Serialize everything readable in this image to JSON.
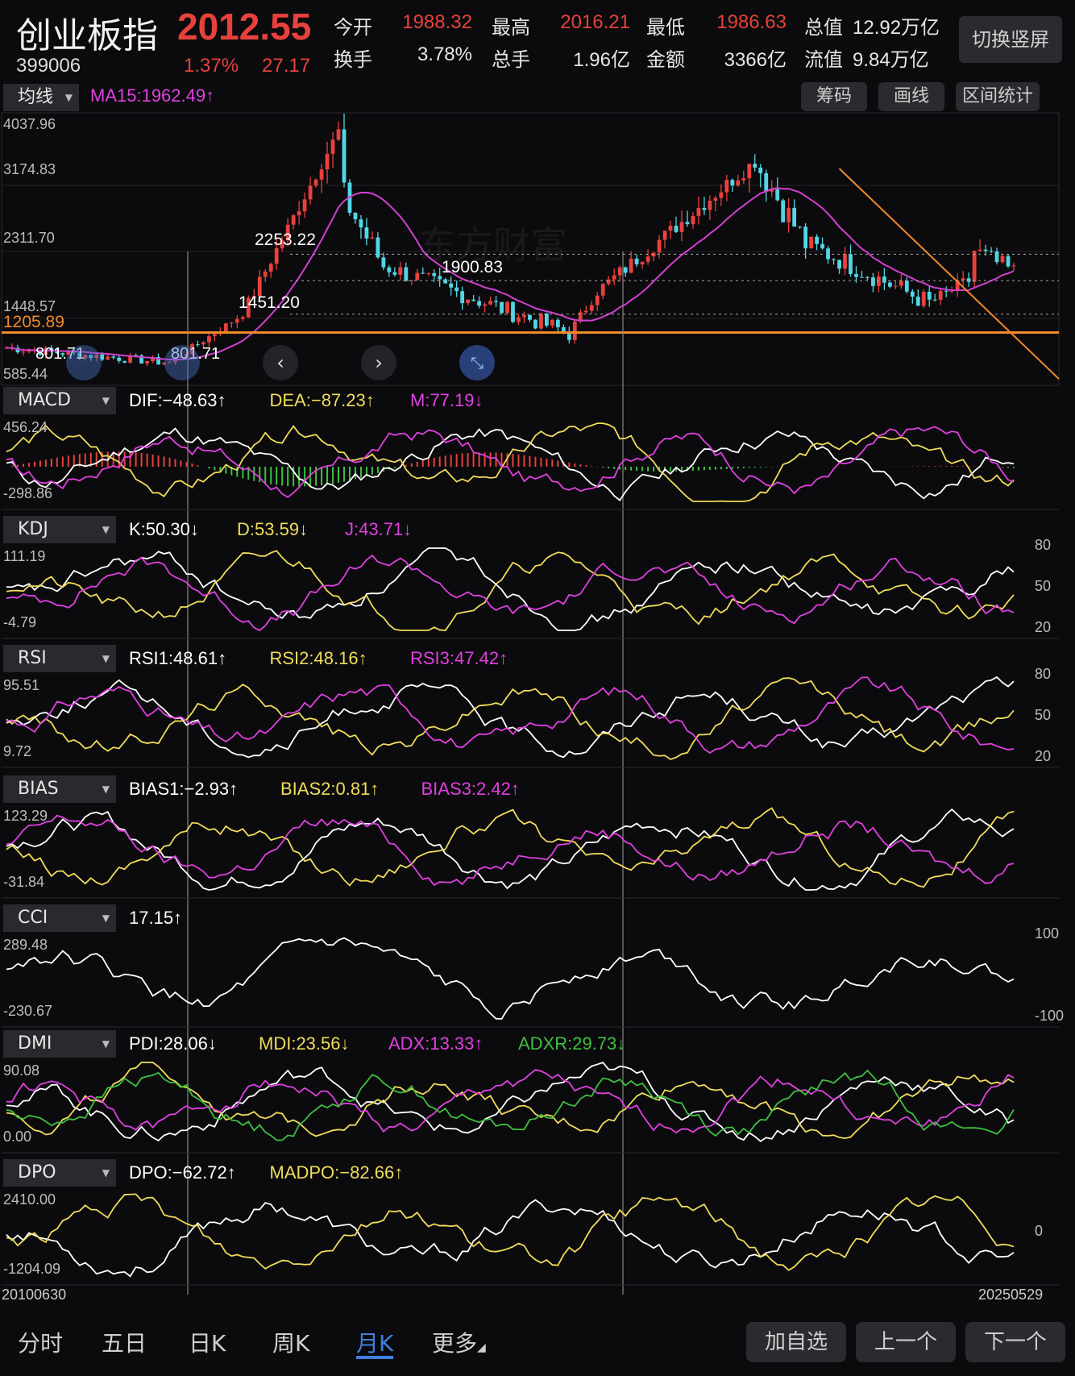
{
  "header": {
    "name": "创业板指",
    "price": "2012.55",
    "code": "399006",
    "change_pct": "1.37%",
    "change": "27.17",
    "stats": [
      {
        "label": "今开",
        "value": "1988.32",
        "color": "#e8413c"
      },
      {
        "label": "最高",
        "value": "2016.21",
        "color": "#e8413c"
      },
      {
        "label": "最低",
        "value": "1986.63",
        "color": "#e8413c"
      },
      {
        "label": "总值",
        "value": "12.92万亿",
        "color": "#e6e6e6"
      },
      {
        "label": "换手",
        "value": "3.78%",
        "color": "#e6e6e6"
      },
      {
        "label": "总手",
        "value": "1.96亿",
        "color": "#e6e6e6"
      },
      {
        "label": "金额",
        "value": "3366亿",
        "color": "#e6e6e6"
      },
      {
        "label": "流值",
        "value": "9.84万亿",
        "color": "#e6e6e6"
      }
    ],
    "switch_btn": "切换竖屏"
  },
  "toolbar": {
    "ma_select": "均线",
    "ma_legend": "MA15:1962.49↑",
    "buttons": [
      "筹码",
      "画线",
      "区间统计"
    ]
  },
  "main_chart": {
    "ylabels": [
      "4037.96",
      "3174.83",
      "2311.70",
      "1448.57",
      "585.44"
    ],
    "annotations": [
      "2253.22",
      "1900.83",
      "1451.20",
      "801.71",
      "801.71"
    ],
    "hline_label": "1205.89",
    "watermark": "东方财富"
  },
  "indicators": [
    {
      "tag": "MACD",
      "legends": [
        {
          "t": "DIF:−48.63↑",
          "c": "#ffffff"
        },
        {
          "t": "DEA:−87.23↑",
          "c": "#f0dc5a"
        },
        {
          "t": "M:77.19↓",
          "c": "#e040e0"
        }
      ],
      "ymax": "456.24",
      "ymin": "-298.86",
      "right": []
    },
    {
      "tag": "KDJ",
      "legends": [
        {
          "t": "K:50.30↓",
          "c": "#ffffff"
        },
        {
          "t": "D:53.59↓",
          "c": "#f0dc5a"
        },
        {
          "t": "J:43.71↓",
          "c": "#e040e0"
        }
      ],
      "ymax": "111.19",
      "ymin": "-4.79",
      "right": [
        "80",
        "50",
        "20"
      ]
    },
    {
      "tag": "RSI",
      "legends": [
        {
          "t": "RSI1:48.61↑",
          "c": "#ffffff"
        },
        {
          "t": "RSI2:48.16↑",
          "c": "#f0dc5a"
        },
        {
          "t": "RSI3:47.42↑",
          "c": "#e040e0"
        }
      ],
      "ymax": "95.51",
      "ymin": "9.72",
      "right": [
        "80",
        "50",
        "20"
      ]
    },
    {
      "tag": "BIAS",
      "legends": [
        {
          "t": "BIAS1:−2.93↑",
          "c": "#ffffff"
        },
        {
          "t": "BIAS2:0.81↑",
          "c": "#f0dc5a"
        },
        {
          "t": "BIAS3:2.42↑",
          "c": "#e040e0"
        }
      ],
      "ymax": "123.29",
      "ymin": "-31.84",
      "right": []
    },
    {
      "tag": "CCI",
      "legends": [
        {
          "t": "17.15↑",
          "c": "#ffffff"
        }
      ],
      "ymax": "289.48",
      "ymin": "-230.67",
      "right": [
        "100",
        "-100"
      ]
    },
    {
      "tag": "DMI",
      "legends": [
        {
          "t": "PDI:28.06↓",
          "c": "#ffffff"
        },
        {
          "t": "MDI:23.56↓",
          "c": "#f0dc5a"
        },
        {
          "t": "ADX:13.33↑",
          "c": "#e040e0"
        },
        {
          "t": "ADXR:29.73↓",
          "c": "#3fbf3f"
        }
      ],
      "ymax": "90.08",
      "ymin": "0.00",
      "right": []
    },
    {
      "tag": "DPO",
      "legends": [
        {
          "t": "DPO:−62.72↑",
          "c": "#ffffff"
        },
        {
          "t": "MADPO:−82.66↑",
          "c": "#f0dc5a"
        }
      ],
      "ymax": "2410.00",
      "ymin": "-1204.09",
      "right": [
        "0"
      ]
    }
  ],
  "x_axis": {
    "start": "20100630",
    "end": "20250529"
  },
  "tabs": [
    "分时",
    "五日",
    "日K",
    "周K",
    "月K",
    "更多"
  ],
  "active_tab": "月K",
  "bottom_buttons": [
    "加自选",
    "上一个",
    "下一个"
  ],
  "chart_data": {
    "type": "candlestick",
    "title": "创业板指 399006 月K",
    "x_range": [
      "20100630",
      "20250529"
    ],
    "ylim": [
      585.44,
      4037.96
    ],
    "key_levels": {
      "support_line": 1205.89,
      "ma15": 1962.49
    },
    "marked_points": [
      {
        "label": "2253.22"
      },
      {
        "label": "1900.83"
      },
      {
        "label": "1451.20"
      },
      {
        "label": "801.71"
      }
    ],
    "anchor_points": [
      {
        "date": "2010-06",
        "close": 1000
      },
      {
        "date": "2012-11",
        "close": 801.71
      },
      {
        "date": "2013-12",
        "close": 1451.2
      },
      {
        "date": "2015-05",
        "close": 3900
      },
      {
        "date": "2015-06",
        "close": 3000
      },
      {
        "date": "2016-01",
        "close": 2100
      },
      {
        "date": "2018-10",
        "close": 1200
      },
      {
        "date": "2019-03",
        "close": 1750
      },
      {
        "date": "2021-07",
        "close": 3500
      },
      {
        "date": "2022-04",
        "close": 2400
      },
      {
        "date": "2024-02",
        "close": 1600
      },
      {
        "date": "2024-09",
        "close": 1900
      },
      {
        "date": "2024-10",
        "close": 2300
      },
      {
        "date": "2025-05",
        "close": 2012.55
      }
    ]
  }
}
